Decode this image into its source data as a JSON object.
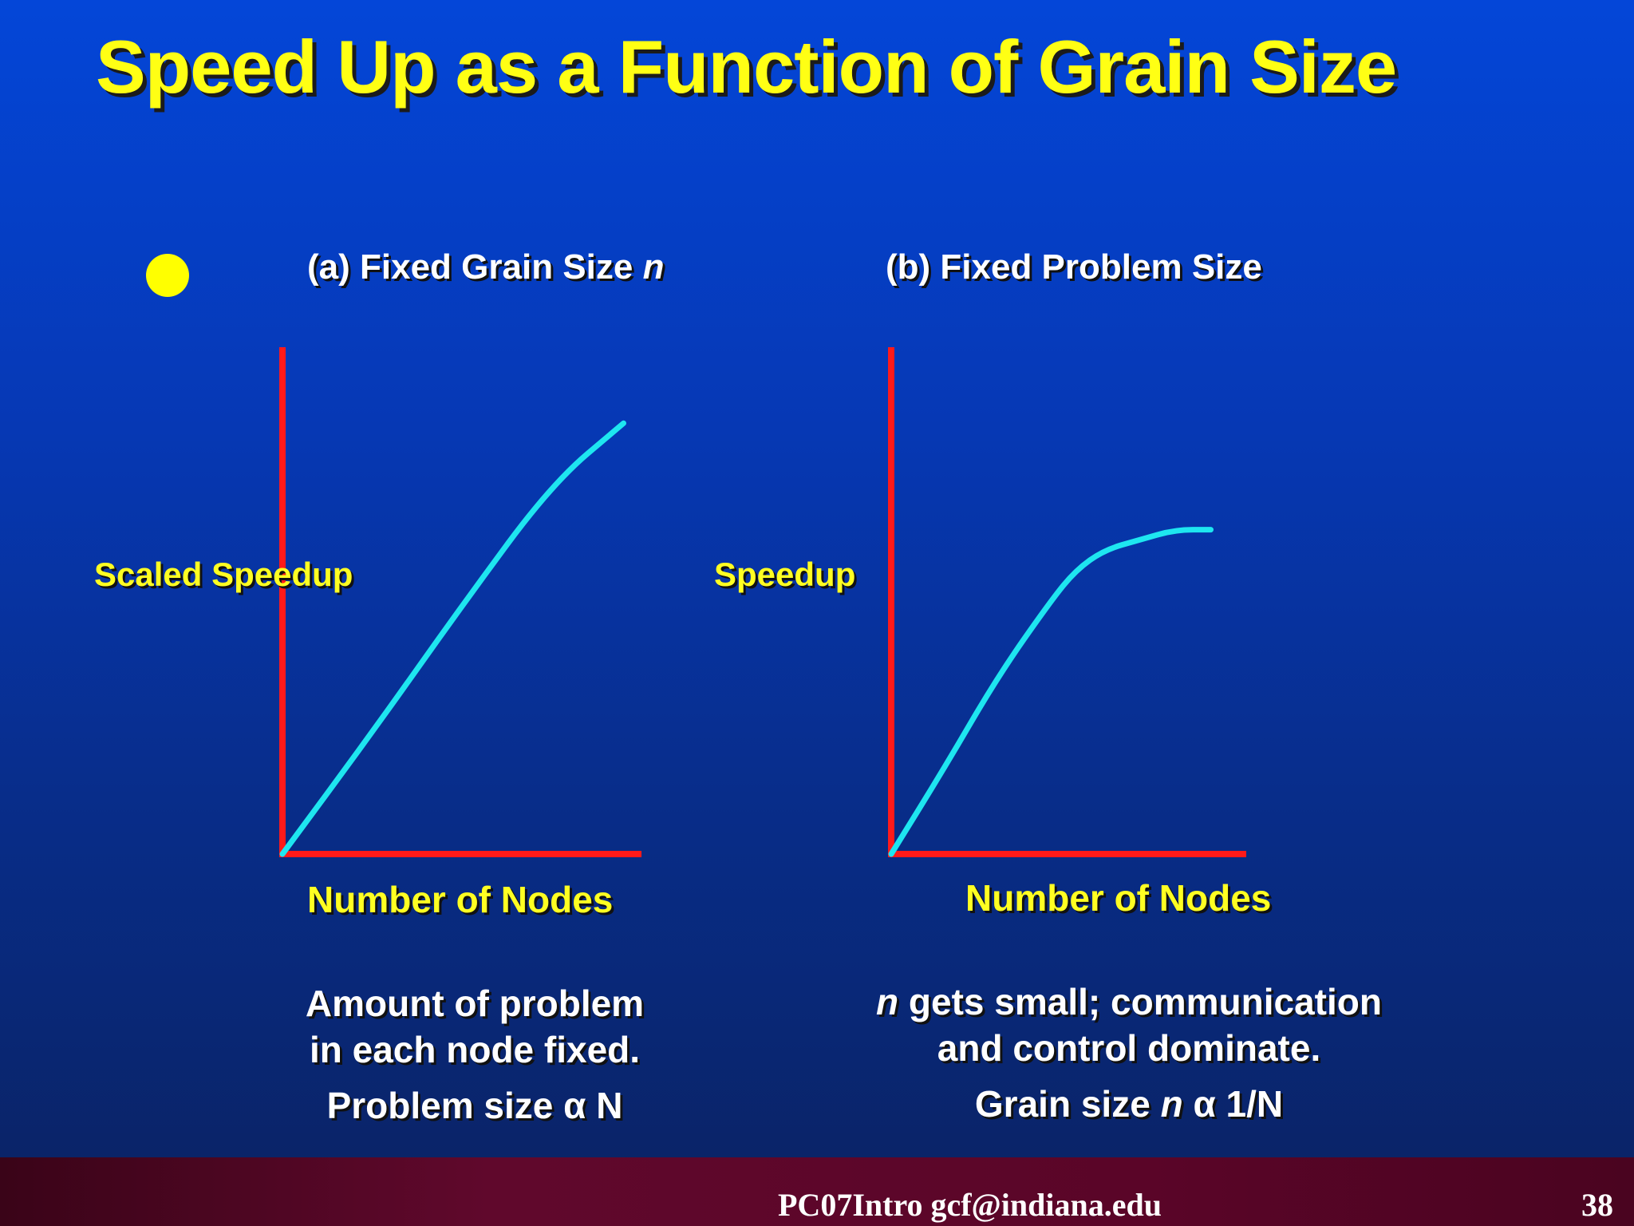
{
  "slide": {
    "title": "Speed Up as a Function of Grain Size",
    "footer": "PC07Intro  gcf@indiana.edu",
    "page_number": "38",
    "colors": {
      "background": "#0638b4",
      "title": "#ffff14",
      "axis": "#ff1a1a",
      "curve": "#1ee6f0",
      "label": "#ffff22",
      "footer_bar": "#5a0528"
    }
  },
  "panel_a": {
    "heading_prefix": "(a) Fixed Grain Size",
    "heading_var": "n",
    "caption_line1": "Amount of problem",
    "caption_line2": "in each node fixed.",
    "caption_line3": "Problem size α N"
  },
  "panel_b": {
    "heading": "(b) Fixed Problem Size",
    "caption_var": "n",
    "caption_line1": " gets small; communication",
    "caption_line2": "and control dominate.",
    "caption_line3_prefix": "Grain size ",
    "caption_line3_var": "n",
    "caption_line3_suffix": " α 1/N"
  },
  "chart_data": [
    {
      "type": "line",
      "title": "(a) Fixed Grain Size n",
      "xlabel": "Number of Nodes",
      "ylabel": "Scaled Speedup",
      "xlim": [
        0,
        1
      ],
      "ylim": [
        0,
        1
      ],
      "grid": false,
      "series": [
        {
          "x": [
            0.0,
            0.25,
            0.5,
            0.75,
            0.95
          ],
          "y": [
            0.0,
            0.24,
            0.49,
            0.73,
            0.85
          ]
        }
      ]
    },
    {
      "type": "line",
      "title": "(b) Fixed Problem Size",
      "xlabel": "Number of Nodes",
      "ylabel": "Speedup",
      "xlim": [
        0,
        1
      ],
      "ylim": [
        0,
        1
      ],
      "grid": false,
      "series": [
        {
          "x": [
            0.0,
            0.15,
            0.3,
            0.45,
            0.52,
            0.6,
            0.7,
            0.8,
            0.9
          ],
          "y": [
            0.0,
            0.17,
            0.35,
            0.5,
            0.56,
            0.5999999999999999,
            0.62,
            0.6399999999999999,
            0.64
          ]
        }
      ]
    }
  ]
}
